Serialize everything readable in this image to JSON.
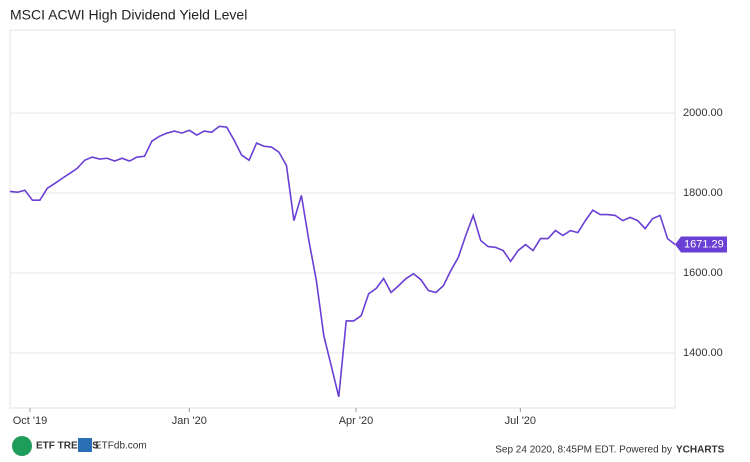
{
  "chart_data": {
    "type": "line",
    "title": "MSCI ACWI High Dividend Yield Level",
    "series": [
      {
        "name": "MSCI ACWI High Dividend Yield Level",
        "color": "#6a3fd4",
        "values": [
          1804,
          1802,
          1807,
          1782,
          1782,
          1812,
          1824,
          1837,
          1849,
          1862,
          1882,
          1890,
          1885,
          1887,
          1880,
          1887,
          1880,
          1890,
          1892,
          1930,
          1942,
          1950,
          1955,
          1950,
          1957,
          1945,
          1955,
          1952,
          1967,
          1965,
          1932,
          1895,
          1882,
          1925,
          1917,
          1915,
          1902,
          1869,
          1731,
          1794,
          1681,
          1581,
          1443,
          1367,
          1290,
          1480,
          1480,
          1493,
          1548,
          1561,
          1586,
          1551,
          1568,
          1586,
          1598,
          1583,
          1556,
          1551,
          1568,
          1606,
          1639,
          1694,
          1744,
          1681,
          1666,
          1664,
          1656,
          1629,
          1656,
          1671,
          1656,
          1686,
          1686,
          1706,
          1694,
          1706,
          1701,
          1731,
          1757,
          1746,
          1746,
          1744,
          1731,
          1739,
          1731,
          1711,
          1736,
          1744,
          1686,
          1671.29
        ]
      }
    ],
    "xlim": [
      0,
      89
    ],
    "xticks": [
      {
        "value": 2.67,
        "label": "Oct '19"
      },
      {
        "value": 24,
        "label": "Jan '20"
      },
      {
        "value": 46.3,
        "label": "Apr '20"
      },
      {
        "value": 68.3,
        "label": "Jul '20"
      }
    ],
    "ylim": [
      1262,
      2208
    ],
    "yticks": [
      {
        "value": 1400,
        "label": "1400.00"
      },
      {
        "value": 1600,
        "label": "1600.00"
      },
      {
        "value": 1800,
        "label": "1800.00"
      },
      {
        "value": 2000,
        "label": "2000.00"
      }
    ],
    "grid": true
  },
  "footer": {
    "timestamp": "Sep 24 2020, 8:45PM EDT. Powered by",
    "brand": "YCHARTS",
    "logo1": "ETF TRENDS",
    "logo2": "ETFdb.com"
  }
}
